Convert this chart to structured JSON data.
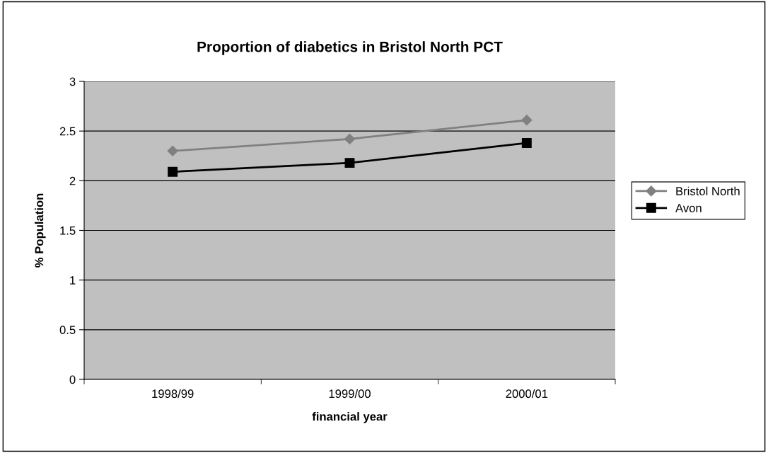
{
  "chart_data": {
    "type": "line",
    "title": "Proportion of diabetics in Bristol North PCT",
    "xlabel": "financial year",
    "ylabel": "% Population",
    "categories": [
      "1998/99",
      "1999/00",
      "2000/01"
    ],
    "series": [
      {
        "name": "Bristol North",
        "color": "#808080",
        "marker": "diamond",
        "values": [
          2.3,
          2.42,
          2.61
        ]
      },
      {
        "name": "Avon",
        "color": "#000000",
        "marker": "square",
        "values": [
          2.09,
          2.18,
          2.38
        ]
      }
    ],
    "ylim": [
      0,
      3
    ],
    "yticks": [
      0,
      0.5,
      1,
      1.5,
      2,
      2.5,
      3
    ],
    "grid": "y",
    "legend": "right",
    "line_style": "solid"
  }
}
